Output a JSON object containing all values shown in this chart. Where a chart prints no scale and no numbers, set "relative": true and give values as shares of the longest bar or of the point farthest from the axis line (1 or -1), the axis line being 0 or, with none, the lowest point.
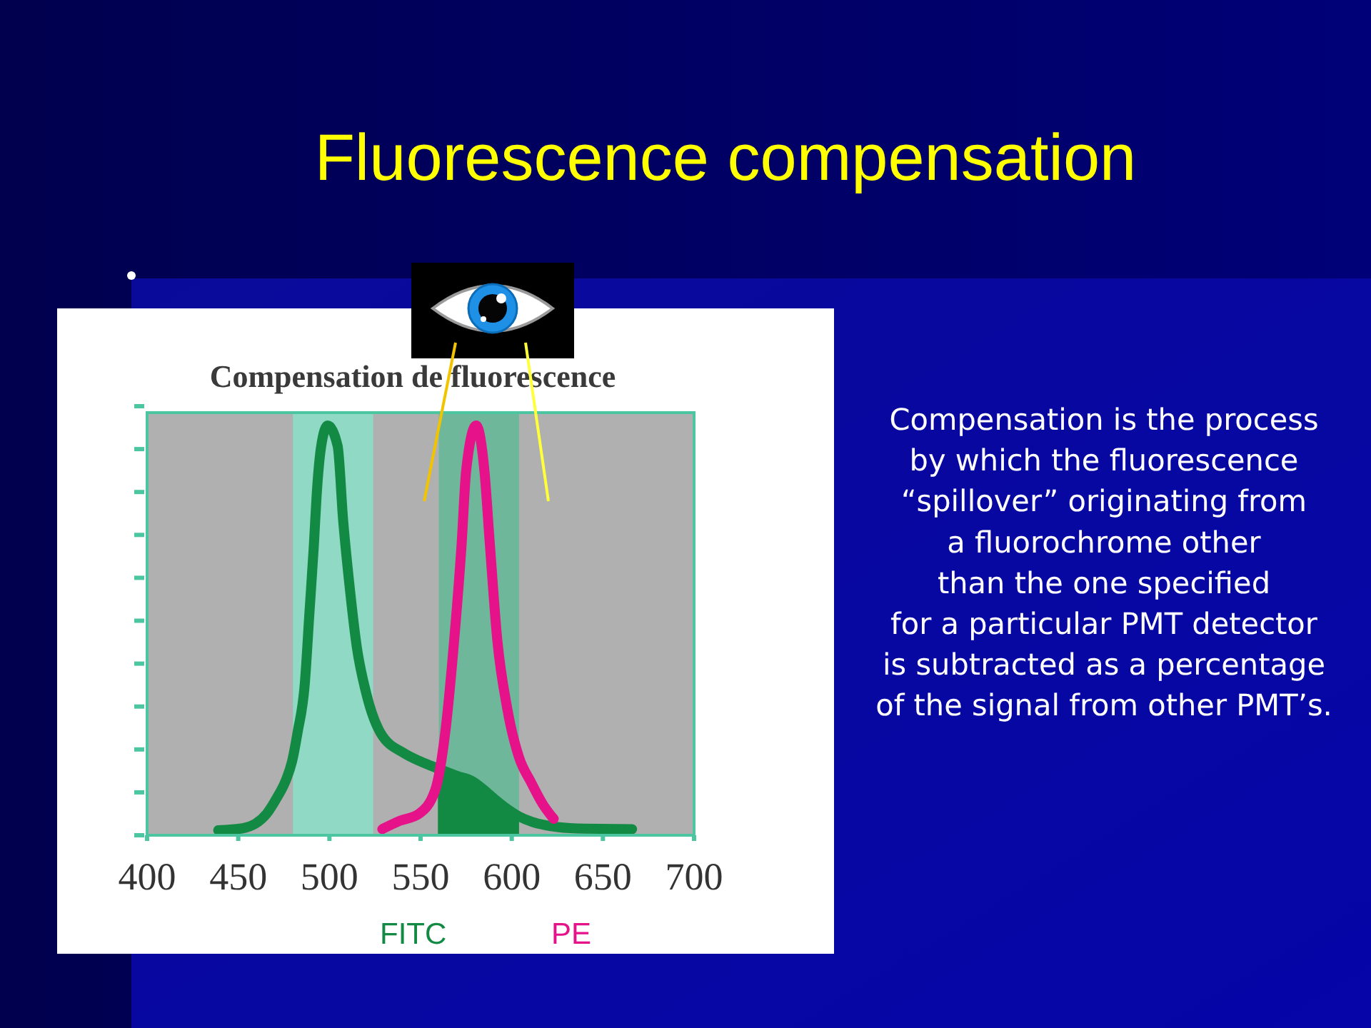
{
  "chart_data": {
    "type": "line",
    "title": "Fluorescence compensation",
    "subtitle": "Compensation de fluorescence",
    "relative": true,
    "xlim": [
      400,
      700
    ],
    "xticks": [
      400,
      450,
      500,
      550,
      600,
      650,
      700
    ],
    "series": [
      {
        "type": "area",
        "color": "#138a44",
        "x": [
          559.5,
          565,
          570,
          578,
          585,
          591,
          597,
          604
        ],
        "values": [
          0.163,
          0.155,
          0.145,
          0.133,
          0.11,
          0.087,
          0.066,
          0.046
        ]
      },
      {
        "name": "FITC",
        "color": "#138a44",
        "x": [
          439,
          452.5,
          465.5,
          471,
          476,
          479.5,
          482.5,
          486.5,
          489,
          491.5,
          493,
          495.5,
          499,
          504.5,
          507.5,
          511,
          515,
          520,
          528,
          541,
          550,
          559.5,
          570,
          578,
          585,
          591,
          597,
          604,
          611,
          618,
          625,
          640,
          666
        ],
        "values": [
          0.012,
          0.017,
          0.052,
          0.09,
          0.133,
          0.18,
          0.25,
          0.37,
          0.54,
          0.71,
          0.83,
          0.95,
          1,
          0.95,
          0.77,
          0.61,
          0.46,
          0.35,
          0.25,
          0.2,
          0.18,
          0.163,
          0.145,
          0.133,
          0.11,
          0.087,
          0.066,
          0.046,
          0.033,
          0.025,
          0.02,
          0.016,
          0.015
        ]
      },
      {
        "name": "PE",
        "color": "#e5128a",
        "x": [
          529,
          538.5,
          549,
          558,
          563.5,
          568.5,
          572.5,
          575,
          580.5,
          585,
          588,
          592,
          597.5,
          604,
          610.5,
          617,
          623
        ],
        "values": [
          0.015,
          0.035,
          0.052,
          0.11,
          0.25,
          0.48,
          0.71,
          0.89,
          1,
          0.89,
          0.71,
          0.48,
          0.31,
          0.19,
          0.13,
          0.076,
          0.04
        ]
      }
    ],
    "bands": [
      {
        "axis": "x",
        "from": 480,
        "to": 524,
        "color": "#8fd9c5"
      },
      {
        "axis": "x",
        "from": 560,
        "to": 604,
        "color": "#6fb79b"
      }
    ],
    "legend": "bottom",
    "annotations": [
      "Compensation is the process\nby which the fluorescence\n“spillover” originating from\na fluorochrome other\nthan the one specified\nfor a particular PMT detector\nis subtracted as a percentage\nof the signal from other PMT’s."
    ]
  }
}
